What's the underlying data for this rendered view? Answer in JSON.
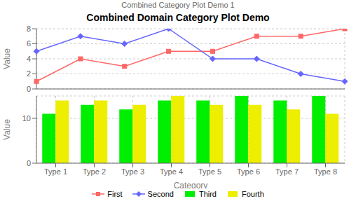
{
  "chart_data": [
    {
      "type": "line",
      "title": "Combined Domain Category Plot Demo",
      "subtitle": "Combined Category Plot Demo 1",
      "categories": [
        "Type 1",
        "Type 2",
        "Type 3",
        "Type 4",
        "Type 5",
        "Type 6",
        "Type 7",
        "Type 8"
      ],
      "series": [
        {
          "name": "First",
          "color": "#FF6666",
          "marker": "square",
          "values": [
            1,
            4,
            3,
            5,
            5,
            7,
            7,
            8
          ]
        },
        {
          "name": "Second",
          "color": "#6666FF",
          "marker": "diamond",
          "values": [
            5,
            7,
            6,
            8,
            4,
            4,
            2,
            1
          ]
        }
      ],
      "ylabel": "Value",
      "ylim": [
        0,
        8
      ],
      "yticks": [
        0,
        2,
        4,
        6,
        8
      ],
      "grid": true,
      "tick_labels": "y"
    },
    {
      "type": "bar",
      "categories": [
        "Type 1",
        "Type 2",
        "Type 3",
        "Type 4",
        "Type 5",
        "Type 6",
        "Type 7",
        "Type 8"
      ],
      "series": [
        {
          "name": "Third",
          "color": "#00EE00",
          "values": [
            11,
            13,
            12,
            14,
            14,
            15,
            14,
            15
          ]
        },
        {
          "name": "Fourth",
          "color": "#EEEE00",
          "values": [
            14,
            14,
            13,
            15,
            13,
            13,
            12,
            11
          ]
        }
      ],
      "xlabel": "Category",
      "ylabel": "Value",
      "ylim": [
        0,
        15
      ],
      "yticks": [
        0,
        10
      ],
      "grid": true,
      "legend": "bottom"
    }
  ]
}
